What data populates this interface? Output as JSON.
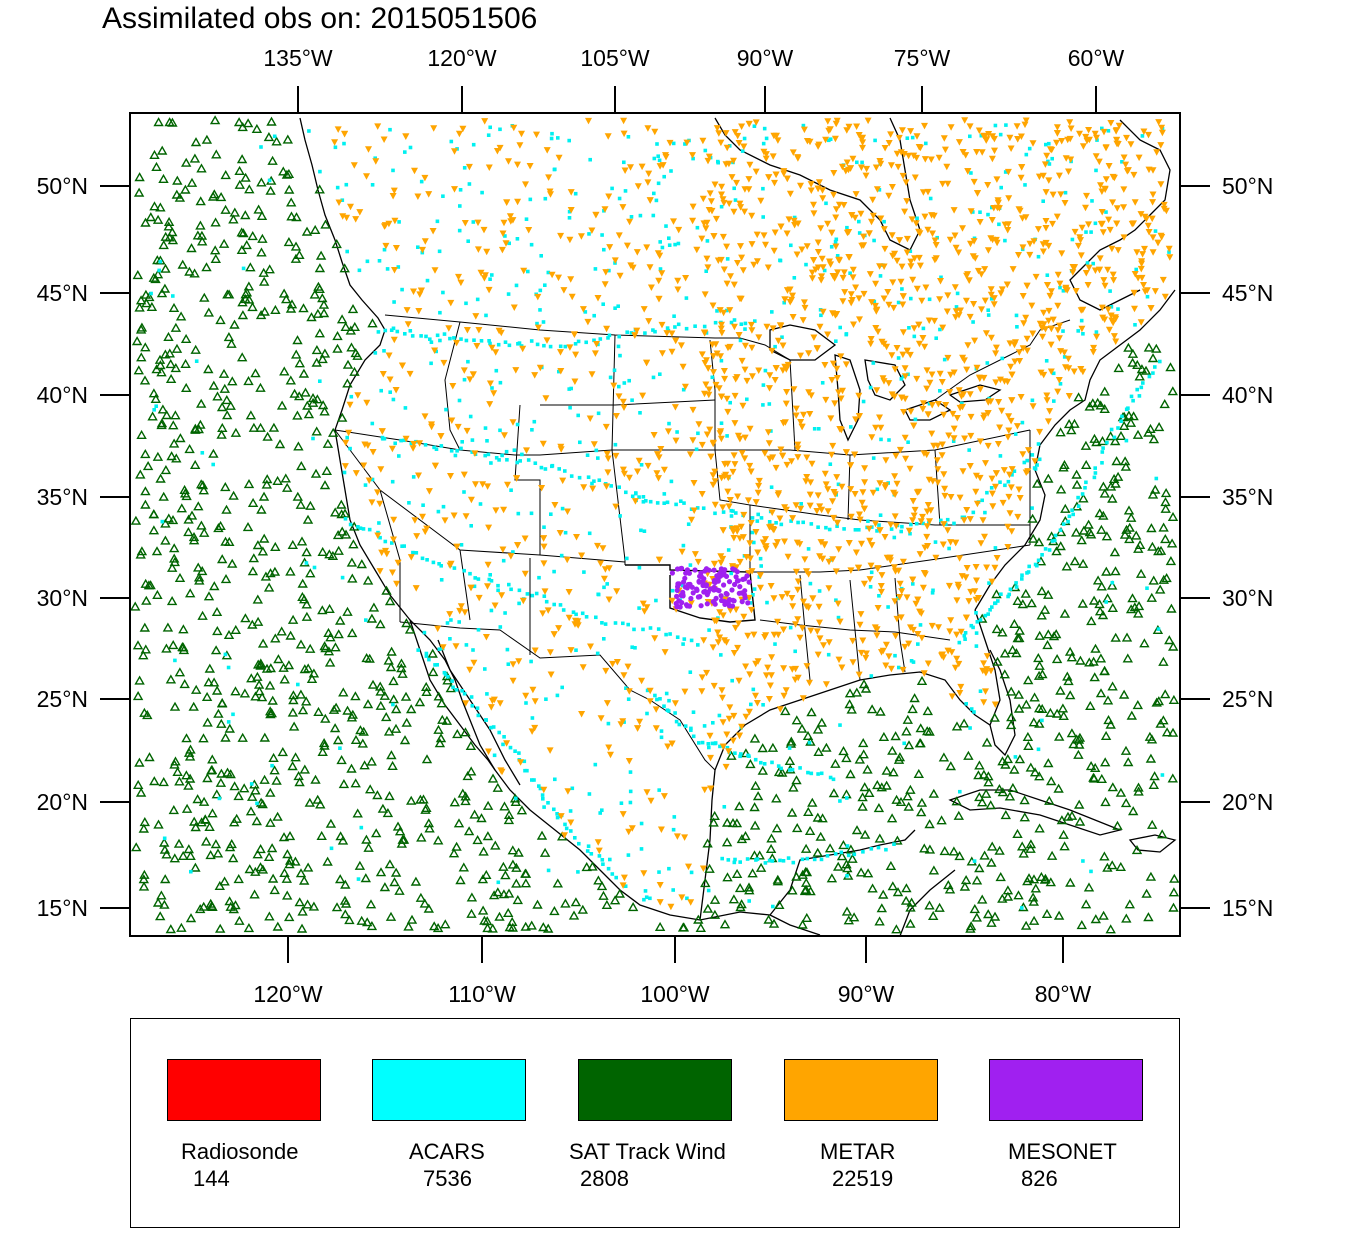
{
  "title": "Assimilated obs on: 2015051506",
  "top_lon_labels": [
    "135°W",
    "120°W",
    "105°W",
    "90°W",
    "75°W",
    "60°W"
  ],
  "bottom_lon_labels": [
    "120°W",
    "110°W",
    "100°W",
    "90°W",
    "80°W"
  ],
  "lat_labels": [
    "50°N",
    "45°N",
    "40°N",
    "35°N",
    "30°N",
    "25°N",
    "20°N",
    "15°N"
  ],
  "legend": [
    {
      "label": "Radiosonde",
      "count": "144",
      "color": "#ff0000"
    },
    {
      "label": "ACARS",
      "count": "7536",
      "color": "#00ffff"
    },
    {
      "label": "SAT Track Wind",
      "count": "2808",
      "color": "#006400"
    },
    {
      "label": "METAR",
      "count": "22519",
      "color": "#ffa500"
    },
    {
      "label": "MESONET",
      "count": "826",
      "color": "#a020f0"
    }
  ],
  "colors": {
    "satwind": "#006400",
    "acars": "#00f0f0",
    "metar": "#ffa500",
    "mesonet": "#a020f0"
  }
}
